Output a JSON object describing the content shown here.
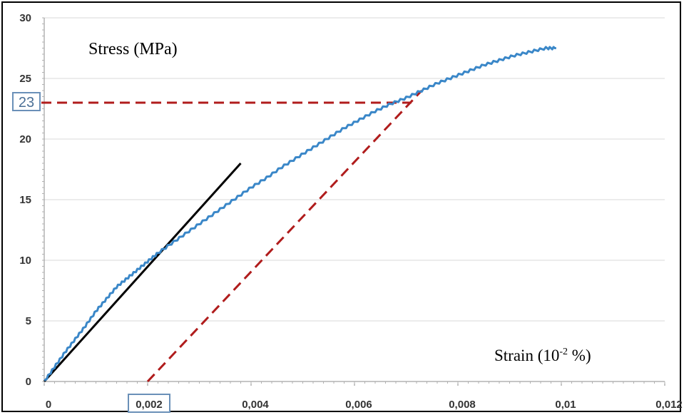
{
  "chart_data": {
    "type": "line",
    "ylabel": "Stress (MPa)",
    "xlabel_base": "Strain (10",
    "xlabel_exp": "-2",
    "xlabel_tail": " %)",
    "xlim": [
      0,
      0.012
    ],
    "ylim": [
      0,
      30
    ],
    "x_ticks": [
      "0",
      "0,002",
      "0,004",
      "0,006",
      "0,008",
      "0,01",
      "0,012"
    ],
    "y_ticks": [
      "0",
      "5",
      "10",
      "15",
      "20",
      "25",
      "30"
    ],
    "grid": "horizontal",
    "highlight_y_label": "23",
    "highlight_x_label": "0,002",
    "series": [
      {
        "color": "#3a87c8",
        "x": [
          0,
          0.0002,
          0.0004,
          0.0006,
          0.0008,
          0.001,
          0.0012,
          0.0014,
          0.0016,
          0.0018,
          0.002,
          0.0022,
          0.0025,
          0.0028,
          0.0031,
          0.0034,
          0.0037,
          0.004,
          0.0043,
          0.0046,
          0.0049,
          0.0052,
          0.0055,
          0.0058,
          0.0061,
          0.0064,
          0.0067,
          0.007,
          0.0073,
          0.0076,
          0.0079,
          0.0082,
          0.0085,
          0.0088,
          0.0091,
          0.0094,
          0.0097,
          0.0099
        ],
        "y": [
          0,
          1.2,
          2.4,
          3.5,
          4.6,
          5.8,
          6.8,
          7.8,
          8.5,
          9.2,
          9.9,
          10.6,
          11.5,
          12.4,
          13.3,
          14.2,
          15.1,
          16.0,
          16.8,
          17.7,
          18.5,
          19.3,
          20.1,
          20.9,
          21.6,
          22.3,
          22.9,
          23.4,
          24.0,
          24.6,
          25.1,
          25.6,
          26.1,
          26.5,
          26.9,
          27.2,
          27.5,
          27.5
        ]
      }
    ],
    "tangent_line": {
      "color": "#000000",
      "x": [
        0,
        0.0038
      ],
      "y": [
        0,
        18
      ]
    },
    "offset_line": {
      "color": "#b01c1c",
      "x": [
        0.002,
        0.0073
      ],
      "y": [
        0,
        24
      ]
    },
    "yield_line": {
      "color": "#b01c1c",
      "x": [
        0,
        0.0071
      ],
      "y": [
        23,
        23
      ]
    }
  }
}
